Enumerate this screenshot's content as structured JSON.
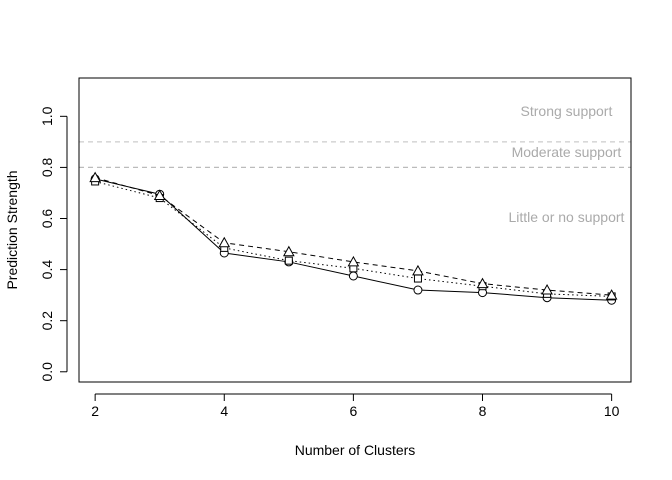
{
  "chart_data": {
    "type": "line",
    "xlabel": "Number of Clusters",
    "ylabel": "Prediction Strength",
    "x": [
      2,
      3,
      4,
      5,
      6,
      7,
      8,
      9,
      10
    ],
    "xlim": [
      1.75,
      10.3
    ],
    "ylim": [
      -0.04,
      1.15
    ],
    "x_ticks": [
      2,
      4,
      6,
      8,
      10
    ],
    "y_ticks": [
      0.0,
      0.2,
      0.4,
      0.6,
      0.8,
      1.0
    ],
    "series": [
      {
        "marker": "circle",
        "line_style": "solid",
        "values": [
          0.755,
          0.695,
          0.465,
          0.43,
          0.375,
          0.32,
          0.31,
          0.29,
          0.28
        ]
      },
      {
        "marker": "square",
        "line_style": "dotted",
        "values": [
          0.745,
          0.68,
          0.485,
          0.435,
          0.405,
          0.365,
          0.335,
          0.305,
          0.295
        ]
      },
      {
        "marker": "triangle",
        "line_style": "dashed",
        "values": [
          0.76,
          0.69,
          0.505,
          0.47,
          0.43,
          0.395,
          0.345,
          0.32,
          0.3
        ]
      }
    ],
    "reference_lines": [
      {
        "y": 0.9,
        "style": "dashed",
        "color": "#cccccc"
      },
      {
        "y": 0.8,
        "style": "dashed",
        "color": "#bbbbbb"
      }
    ],
    "annotations": [
      {
        "text": "Strong support",
        "x": 9.3,
        "y": 1.015
      },
      {
        "text": "Moderate support",
        "x": 9.3,
        "y": 0.855
      },
      {
        "text": "Little or no support",
        "x": 9.3,
        "y": 0.6
      }
    ],
    "grid": false,
    "legend": "none"
  }
}
